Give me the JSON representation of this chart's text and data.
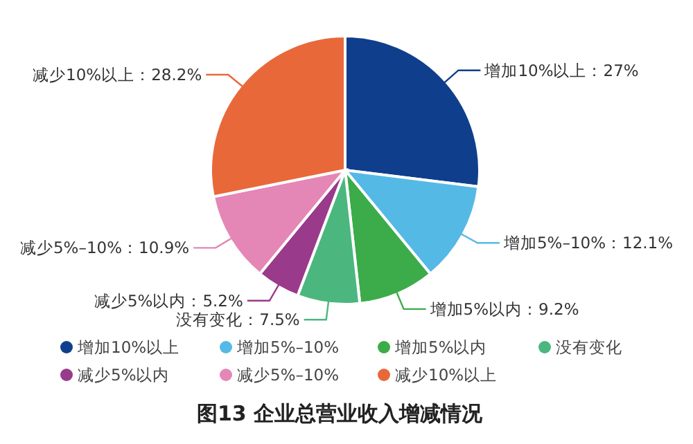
{
  "chart_data": {
    "type": "pie",
    "title": "图13 企业总营业收入增减情况",
    "categories": [
      "增加10%以上",
      "增加5%–10%",
      "增加5%以内",
      "没有变化",
      "减少5%以内",
      "减少5%–10%",
      "减少10%以上"
    ],
    "values": [
      27,
      12.1,
      9.2,
      7.5,
      5.2,
      10.9,
      28.2
    ],
    "colors": [
      "#0f3f8c",
      "#55b9e6",
      "#3cab4a",
      "#4bb77f",
      "#9a3a8a",
      "#e487b6",
      "#e8683a"
    ],
    "value_labels": [
      "增加10%以上：27%",
      "增加5%–10%：12.1%",
      "增加5%以内：9.2%",
      "没有变化：7.5%",
      "减少5%以内：5.2%",
      "减少5%–10%：10.9%",
      "减少10%以上：28.2%"
    ],
    "legend": "bottom"
  }
}
